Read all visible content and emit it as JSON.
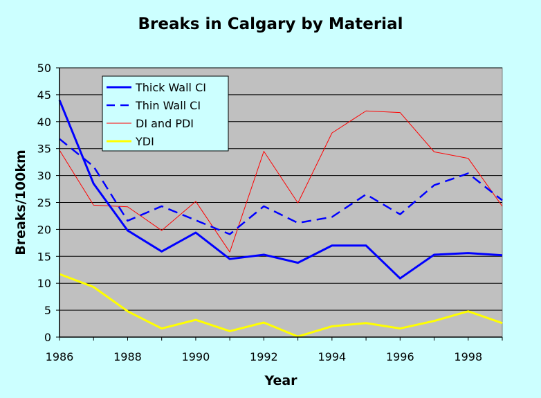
{
  "chart_data": {
    "type": "line",
    "title": "Breaks in Calgary by Material",
    "xlabel": "Year",
    "ylabel": "Breaks/100km",
    "xlim": [
      1986,
      1999
    ],
    "ylim": [
      0,
      50
    ],
    "x_ticks": [
      1986,
      1988,
      1990,
      1992,
      1994,
      1996,
      1998
    ],
    "y_ticks": [
      0,
      5,
      10,
      15,
      20,
      25,
      30,
      35,
      40,
      45,
      50
    ],
    "grid": true,
    "legend_position": "top-left",
    "x": [
      1986,
      1987,
      1988,
      1989,
      1990,
      1991,
      1992,
      1993,
      1994,
      1995,
      1996,
      1997,
      1998,
      1999
    ],
    "series": [
      {
        "name": "Thick Wall CI",
        "color": "#0000ff",
        "style": "solid-thick",
        "values": [
          44.0,
          28.5,
          19.8,
          15.9,
          19.4,
          14.5,
          15.3,
          13.8,
          17.0,
          17.0,
          10.9,
          15.3,
          15.6,
          15.2
        ]
      },
      {
        "name": "Thin Wall CI",
        "color": "#0000ff",
        "style": "dashed",
        "values": [
          36.8,
          31.7,
          21.6,
          24.3,
          21.7,
          19.1,
          24.3,
          21.2,
          22.3,
          26.5,
          22.8,
          28.2,
          30.4,
          25.4
        ]
      },
      {
        "name": "DI and PDI",
        "color": "#ff0000",
        "style": "solid-thin",
        "values": [
          34.7,
          24.5,
          24.2,
          19.8,
          25.2,
          15.8,
          34.5,
          24.9,
          37.9,
          42.0,
          41.7,
          34.4,
          33.2,
          24.3
        ]
      },
      {
        "name": "YDI",
        "color": "#ffff00",
        "style": "solid-thick",
        "values": [
          11.7,
          9.3,
          4.8,
          1.6,
          3.2,
          1.1,
          2.7,
          0.1,
          2.0,
          2.6,
          1.6,
          3.0,
          4.8,
          2.6
        ]
      }
    ]
  }
}
